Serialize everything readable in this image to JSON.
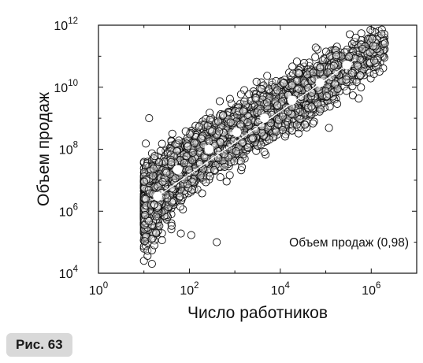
{
  "figure": {
    "caption": "Рис. 63"
  },
  "chart_data": {
    "type": "scatter",
    "title": "",
    "xlabel": "Число работников",
    "ylabel": "Объем продаж",
    "x_scale": "log",
    "y_scale": "log",
    "xlim": [
      1,
      10000000
    ],
    "ylim": [
      10000,
      1000000000000
    ],
    "x_ticks": [
      {
        "value": 1,
        "base": "10",
        "exp": "0"
      },
      {
        "value": 100,
        "base": "10",
        "exp": "2"
      },
      {
        "value": 10000,
        "base": "10",
        "exp": "4"
      },
      {
        "value": 1000000,
        "base": "10",
        "exp": "6"
      }
    ],
    "y_ticks": [
      {
        "value": 10000,
        "base": "10",
        "exp": "4"
      },
      {
        "value": 1000000,
        "base": "10",
        "exp": "6"
      },
      {
        "value": 100000000,
        "base": "10",
        "exp": "8"
      },
      {
        "value": 10000000000,
        "base": "10",
        "exp": "10"
      },
      {
        "value": 1000000000000,
        "base": "10",
        "exp": "12"
      }
    ],
    "annotation": "Объем продаж (0,98)",
    "grid": false,
    "series": [
      {
        "role": "binned-means",
        "marker": "filled-white-circle",
        "x": [
          20,
          55,
          270,
          1100,
          4500,
          18000,
          75000,
          290000
        ],
        "y": [
          3000000,
          22000000,
          100000000,
          350000000,
          1000000000,
          3800000000,
          14000000000,
          52000000000
        ]
      },
      {
        "role": "observations",
        "marker": "open-circle",
        "distribution": {
          "x_range": [
            10,
            2000000
          ],
          "slope": 0.98,
          "scatter_decades": 0.42,
          "approx_points": 5000
        },
        "outliers": [
          {
            "x": 2000000,
            "y": 260000000000
          },
          {
            "x": 530000,
            "y": 4300000000
          },
          {
            "x": 60000,
            "y": 190000000000
          },
          {
            "x": 3000,
            "y": 15000000000
          },
          {
            "x": 400,
            "y": 100000
          },
          {
            "x": 110,
            "y": 170000
          },
          {
            "x": 65,
            "y": 190000
          },
          {
            "x": 25,
            "y": 10000
          },
          {
            "x": 17,
            "y": 10000
          },
          {
            "x": 13,
            "y": 1000000000
          },
          {
            "x": 15,
            "y": 20000
          }
        ]
      }
    ]
  }
}
